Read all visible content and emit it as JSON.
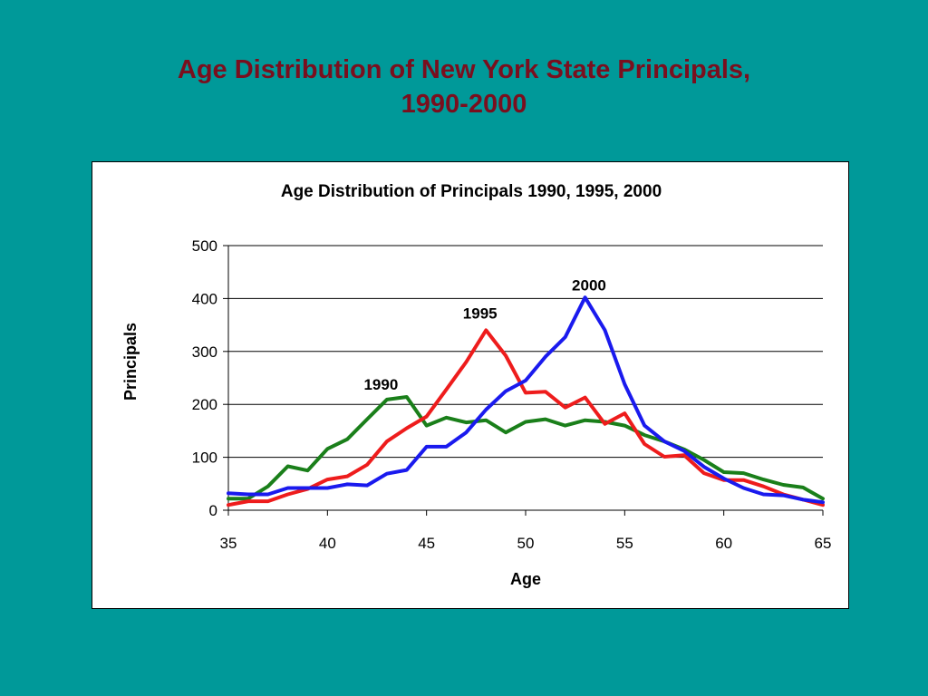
{
  "slide": {
    "title_line1": "Age Distribution of New York State Principals,",
    "title_line2": "1990-2000"
  },
  "chart_data": {
    "type": "line",
    "title": "Age Distribution of Principals 1990, 1995, 2000",
    "xlabel": "Age",
    "ylabel": "Principals",
    "xlim": [
      35,
      65
    ],
    "ylim": [
      0,
      500
    ],
    "xticks": [
      35,
      40,
      45,
      50,
      55,
      60,
      65
    ],
    "yticks": [
      0,
      100,
      200,
      300,
      400,
      500
    ],
    "grid": "horizontal",
    "x": [
      35,
      36,
      37,
      38,
      39,
      40,
      41,
      42,
      43,
      44,
      45,
      46,
      47,
      48,
      49,
      50,
      51,
      52,
      53,
      54,
      55,
      56,
      57,
      58,
      59,
      60,
      61,
      62,
      63,
      64,
      65
    ],
    "series": [
      {
        "name": "1990",
        "color": "#1a7f1a",
        "values": [
          22,
          22,
          45,
          83,
          75,
          116,
          134,
          172,
          209,
          214,
          160,
          175,
          166,
          170,
          147,
          167,
          172,
          160,
          170,
          167,
          160,
          142,
          130,
          115,
          95,
          72,
          70,
          58,
          48,
          43,
          22
        ]
      },
      {
        "name": "1995",
        "color": "#ee1c1c",
        "values": [
          10,
          17,
          17,
          30,
          40,
          58,
          64,
          86,
          130,
          155,
          177,
          228,
          280,
          340,
          292,
          222,
          224,
          194,
          213,
          163,
          183,
          125,
          101,
          104,
          70,
          57,
          57,
          45,
          30,
          20,
          10
        ]
      },
      {
        "name": "2000",
        "color": "#1a1aee",
        "values": [
          32,
          30,
          30,
          42,
          42,
          42,
          49,
          47,
          69,
          76,
          120,
          120,
          147,
          190,
          225,
          245,
          290,
          327,
          402,
          340,
          238,
          160,
          130,
          112,
          82,
          60,
          42,
          30,
          28,
          20,
          15
        ]
      }
    ],
    "annotations": [
      {
        "text": "1990",
        "x": 42.7,
        "y": 228
      },
      {
        "text": "1995",
        "x": 47.7,
        "y": 362
      },
      {
        "text": "2000",
        "x": 53.2,
        "y": 415
      }
    ]
  }
}
